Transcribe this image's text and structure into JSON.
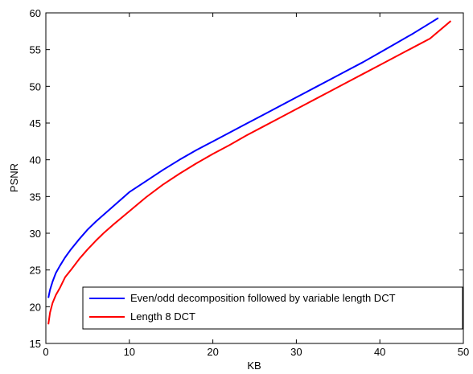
{
  "chart_data": {
    "type": "line",
    "title": "",
    "xlabel": "KB",
    "ylabel": "PSNR",
    "xlim": [
      0,
      50
    ],
    "ylim": [
      15,
      60
    ],
    "xticks": [
      0,
      10,
      20,
      30,
      40,
      50
    ],
    "yticks": [
      15,
      20,
      25,
      30,
      35,
      40,
      45,
      50,
      55,
      60
    ],
    "grid": false,
    "legend_position": "bottom-right",
    "series": [
      {
        "name": "Even/odd decomposition followed by variable length DCT",
        "color": "#0000ff",
        "x": [
          0.3,
          0.5,
          0.8,
          1.2,
          1.7,
          2.3,
          3,
          4,
          5,
          6,
          7,
          8,
          10,
          12,
          14,
          16,
          18,
          20,
          22,
          24,
          26,
          28,
          30,
          32,
          34,
          36,
          38,
          40,
          42,
          44,
          46,
          47
        ],
        "y": [
          21.2,
          22.3,
          23.4,
          24.6,
          25.6,
          26.7,
          27.8,
          29.2,
          30.5,
          31.6,
          32.6,
          33.6,
          35.6,
          37.1,
          38.6,
          40.0,
          41.3,
          42.5,
          43.7,
          44.9,
          46.1,
          47.3,
          48.5,
          49.7,
          50.9,
          52.1,
          53.3,
          54.6,
          55.9,
          57.2,
          58.6,
          59.3
        ]
      },
      {
        "name": "Length 8 DCT",
        "color": "#ff0000",
        "x": [
          0.3,
          0.5,
          0.8,
          1.2,
          1.7,
          2.3,
          3,
          4,
          5,
          6,
          7,
          8,
          10,
          12,
          14,
          16,
          18,
          20,
          22,
          24,
          26,
          28,
          30,
          32,
          34,
          36,
          38,
          40,
          42,
          44,
          46,
          48.5
        ],
        "y": [
          17.6,
          19.2,
          20.5,
          21.6,
          22.6,
          24.0,
          25.0,
          26.5,
          27.8,
          29.0,
          30.1,
          31.1,
          33.0,
          34.9,
          36.6,
          38.1,
          39.5,
          40.8,
          42.0,
          43.3,
          44.5,
          45.7,
          46.9,
          48.1,
          49.3,
          50.5,
          51.7,
          52.9,
          54.1,
          55.3,
          56.5,
          58.9
        ]
      }
    ]
  }
}
